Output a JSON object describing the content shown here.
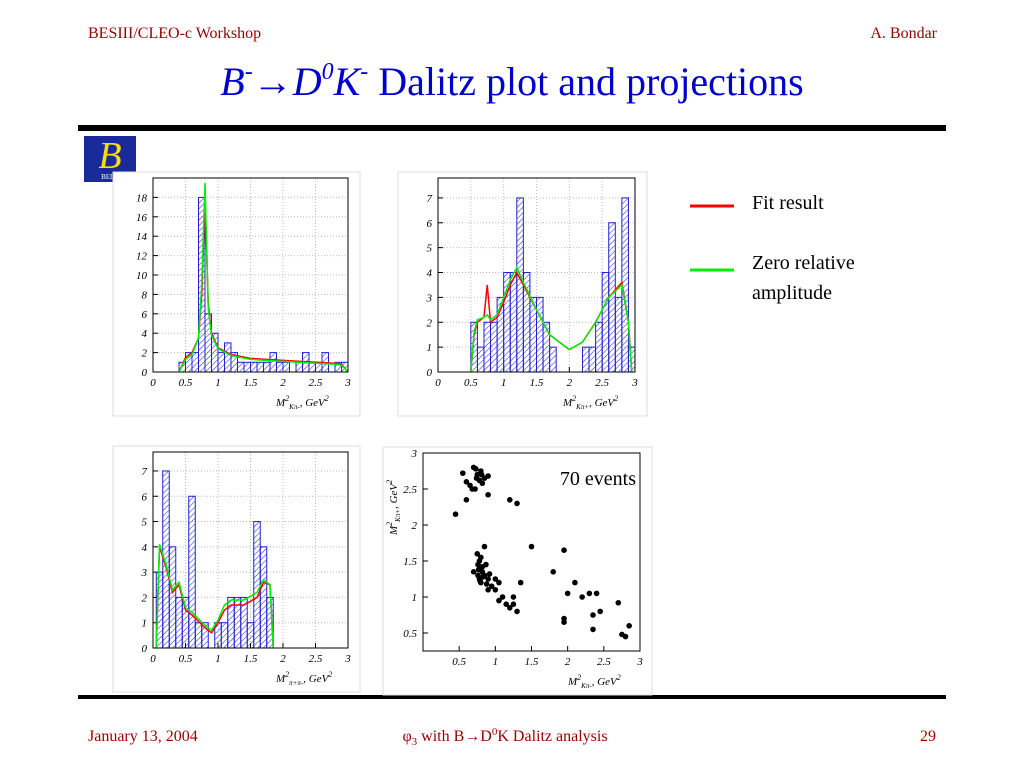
{
  "header": {
    "left": "BESIII/CLEO-c Workshop",
    "right": "A. Bondar"
  },
  "title": {
    "b": "B",
    "b_sup": "-",
    "arrow": "→",
    "d": "D",
    "d_sup": "0",
    "k": "K",
    "k_sup": "-",
    "rest": " Dalitz plot and projections"
  },
  "logo": {
    "letter": "B",
    "text": "BELLE"
  },
  "legend": {
    "entries": [
      {
        "label": "Fit result",
        "color": "#ff0000"
      },
      {
        "label": "Zero relative",
        "label2": "amplitude",
        "color": "#00ee00"
      }
    ]
  },
  "footer": {
    "date": "January 13, 2004",
    "phi": "φ",
    "phi_sub": "3",
    "mid1": " with B",
    "arrow": "→",
    "d": "D",
    "d_sup": "0",
    "mid2": "K Dalitz analysis",
    "page": "29"
  },
  "chart_data": [
    {
      "type": "histogram",
      "color": "#2020d0",
      "grid": true,
      "bins": [
        0.4,
        0.5,
        0.6,
        0.7,
        0.8,
        0.9,
        1.0,
        1.1,
        1.2,
        1.3,
        1.4,
        1.5,
        1.6,
        1.7,
        1.8,
        1.9,
        2.0,
        2.1,
        2.2,
        2.3,
        2.4,
        2.5,
        2.6,
        2.7,
        2.8,
        2.9,
        3.0
      ],
      "counts": [
        1,
        2,
        2,
        18,
        6,
        4,
        2,
        3,
        2,
        1,
        1,
        1,
        1,
        1,
        2,
        1,
        1,
        0,
        1,
        2,
        1,
        1,
        2,
        0,
        1,
        1
      ],
      "series": [
        {
          "color": "#ff0000",
          "x": [
            0.4,
            0.5,
            0.6,
            0.7,
            0.75,
            0.8,
            0.85,
            0.9,
            1.0,
            1.2,
            1.5,
            2.0,
            2.5,
            2.8,
            2.9,
            3.0
          ],
          "values": [
            0,
            1.5,
            2,
            3.5,
            8,
            18,
            7,
            4,
            2.5,
            1.8,
            1.4,
            1.2,
            1.0,
            0.9,
            0.8,
            0
          ]
        },
        {
          "color": "#00ee00",
          "x": [
            0.4,
            0.5,
            0.6,
            0.7,
            0.75,
            0.8,
            0.85,
            0.9,
            1.0,
            1.2,
            1.5,
            2.0,
            2.5,
            2.8,
            2.9,
            3.0
          ],
          "values": [
            0,
            1.3,
            1.8,
            3.5,
            9,
            19.5,
            6.5,
            3.8,
            2.4,
            1.7,
            1.3,
            1.1,
            0.9,
            0.8,
            0.7,
            0
          ]
        }
      ],
      "xlim": [
        0,
        3
      ],
      "ylim": [
        0,
        20
      ],
      "xticks": [
        0,
        0.5,
        1,
        1.5,
        2,
        2.5,
        3
      ],
      "yticks": [
        0,
        2,
        4,
        6,
        8,
        10,
        12,
        14,
        16,
        18
      ],
      "x_label": {
        "m": "M",
        "m_sup": "2",
        "sub": "Kπ-",
        "unit": ", GeV",
        "unit_sup": "2"
      }
    },
    {
      "type": "histogram",
      "color": "#2020d0",
      "grid": true,
      "bins": [
        0.5,
        0.6,
        0.7,
        0.8,
        0.9,
        1.0,
        1.1,
        1.2,
        1.3,
        1.4,
        1.5,
        1.6,
        1.7,
        1.8,
        1.9,
        2.0,
        2.1,
        2.2,
        2.3,
        2.4,
        2.5,
        2.6,
        2.7,
        2.8,
        2.9,
        3.0
      ],
      "counts": [
        2,
        1,
        2,
        2,
        3,
        4,
        4,
        7,
        4,
        3,
        3,
        2,
        1,
        0,
        0,
        0,
        0,
        1,
        1,
        2,
        4,
        6,
        3,
        7,
        1
      ],
      "series": [
        {
          "color": "#ff0000",
          "x": [
            0.5,
            0.55,
            0.6,
            0.7,
            0.75,
            0.8,
            0.9,
            1.0,
            1.1,
            1.2,
            1.3,
            1.5,
            1.7,
            2.0,
            2.2,
            2.4,
            2.6,
            2.8,
            2.9,
            2.95
          ],
          "values": [
            0,
            1.5,
            2,
            2.2,
            3.5,
            2,
            2.2,
            2.8,
            3.5,
            4,
            3.5,
            2.5,
            1.5,
            0.9,
            1.2,
            2,
            3,
            3.6,
            2,
            0
          ]
        },
        {
          "color": "#00ee00",
          "x": [
            0.5,
            0.55,
            0.6,
            0.7,
            0.75,
            0.8,
            0.9,
            1.0,
            1.1,
            1.2,
            1.3,
            1.5,
            1.7,
            2.0,
            2.2,
            2.4,
            2.6,
            2.8,
            2.9,
            2.95
          ],
          "values": [
            0,
            1.6,
            2.1,
            2.2,
            2.3,
            2.1,
            2.3,
            3,
            3.7,
            4.2,
            3.6,
            2.5,
            1.5,
            0.9,
            1.2,
            2,
            3,
            3.5,
            2,
            0
          ]
        }
      ],
      "xlim": [
        0,
        3
      ],
      "ylim": [
        0,
        7.8
      ],
      "xticks": [
        0,
        0.5,
        1,
        1.5,
        2,
        2.5,
        3
      ],
      "yticks": [
        0,
        1,
        2,
        3,
        4,
        5,
        6,
        7
      ],
      "x_label": {
        "m": "M",
        "m_sup": "2",
        "sub": "Kπ+",
        "unit": ", GeV",
        "unit_sup": "2"
      }
    },
    {
      "type": "histogram",
      "color": "#2020d0",
      "grid": true,
      "bins": [
        0.05,
        0.15,
        0.25,
        0.35,
        0.45,
        0.55,
        0.65,
        0.75,
        0.85,
        0.95,
        1.05,
        1.15,
        1.25,
        1.35,
        1.45,
        1.55,
        1.65,
        1.75,
        1.85
      ],
      "counts": [
        3,
        7,
        4,
        2,
        2,
        6,
        1,
        1,
        0,
        1,
        1,
        2,
        2,
        2,
        1,
        5,
        4,
        2
      ],
      "series": [
        {
          "color": "#ff0000",
          "x": [
            0.05,
            0.1,
            0.2,
            0.3,
            0.4,
            0.5,
            0.6,
            0.8,
            0.9,
            1.0,
            1.1,
            1.2,
            1.4,
            1.6,
            1.7,
            1.8,
            1.85
          ],
          "values": [
            0,
            4,
            3.2,
            2.2,
            2.5,
            1.5,
            1.3,
            0.8,
            0.6,
            1,
            1.5,
            1.7,
            1.7,
            2,
            2.6,
            2.5,
            0
          ]
        },
        {
          "color": "#00ee00",
          "x": [
            0.05,
            0.1,
            0.2,
            0.3,
            0.4,
            0.5,
            0.6,
            0.8,
            0.9,
            1.0,
            1.1,
            1.2,
            1.4,
            1.6,
            1.7,
            1.8,
            1.85
          ],
          "values": [
            0,
            4.1,
            3.3,
            2.3,
            2.6,
            1.6,
            1.4,
            0.9,
            0.7,
            1.1,
            1.7,
            1.9,
            1.9,
            2.2,
            2.7,
            2.5,
            0
          ]
        }
      ],
      "xlim": [
        0,
        3
      ],
      "ylim": [
        0,
        7.75
      ],
      "xticks": [
        0,
        0.5,
        1,
        1.5,
        2,
        2.5,
        3
      ],
      "yticks": [
        0,
        1,
        2,
        3,
        4,
        5,
        6,
        7
      ],
      "x_label": {
        "m": "M",
        "m_sup": "2",
        "sub": "π+π-",
        "unit": ", GeV",
        "unit_sup": "2"
      }
    },
    {
      "type": "scatter",
      "color": "#000000",
      "annotation": "70 events",
      "x": [
        0.55,
        0.6,
        0.65,
        0.7,
        0.75,
        0.8,
        0.78,
        0.85,
        0.9,
        0.72,
        0.6,
        0.9,
        0.45,
        1.2,
        1.3,
        0.82,
        0.68,
        0.75,
        0.8,
        0.85,
        0.78,
        0.76,
        0.8,
        0.82,
        0.76,
        0.78,
        0.8,
        0.85,
        0.9,
        0.95,
        1.0,
        1.05,
        1.0,
        1.1,
        0.9,
        1.05,
        1.15,
        1.2,
        1.25,
        1.3,
        1.35,
        1.5,
        1.8,
        1.95,
        2.0,
        2.1,
        1.95,
        1.95,
        2.2,
        2.3,
        2.4,
        2.35,
        2.45,
        2.35,
        2.7,
        2.75,
        2.8,
        2.85,
        1.25,
        0.82,
        0.88,
        0.74,
        0.77,
        0.83,
        0.79,
        0.87,
        0.73,
        0.81,
        0.92,
        0.7
      ],
      "values": [
        2.72,
        2.6,
        2.55,
        2.8,
        2.7,
        2.75,
        2.62,
        2.65,
        2.68,
        2.5,
        2.35,
        2.42,
        2.15,
        2.35,
        2.3,
        2.58,
        2.5,
        1.6,
        1.55,
        1.7,
        1.5,
        1.45,
        1.4,
        1.35,
        1.3,
        1.25,
        1.2,
        1.3,
        1.25,
        1.15,
        1.25,
        1.2,
        1.1,
        1.0,
        1.1,
        0.95,
        0.9,
        0.85,
        0.9,
        0.8,
        1.2,
        1.7,
        1.35,
        1.65,
        1.05,
        1.2,
        0.7,
        0.65,
        1.0,
        1.05,
        1.05,
        0.75,
        0.8,
        0.55,
        0.92,
        0.48,
        0.45,
        0.6,
        1.0,
        1.42,
        1.18,
        2.65,
        1.38,
        1.28,
        1.22,
        1.45,
        2.78,
        2.7,
        1.32,
        1.35
      ],
      "xlim": [
        0,
        3
      ],
      "ylim": [
        0.25,
        3
      ],
      "xticks": [
        0.5,
        1,
        1.5,
        2,
        2.5,
        3
      ],
      "yticks": [
        0.5,
        1,
        1.5,
        2,
        2.5,
        3
      ],
      "x_label": {
        "m": "M",
        "m_sup": "2",
        "sub": "Kπ-",
        "unit": ", GeV",
        "unit_sup": "2"
      },
      "y_label": {
        "m": "M",
        "m_sup": "2",
        "sub": "Kπ+",
        "unit": ", GeV",
        "unit_sup": "2"
      }
    }
  ]
}
